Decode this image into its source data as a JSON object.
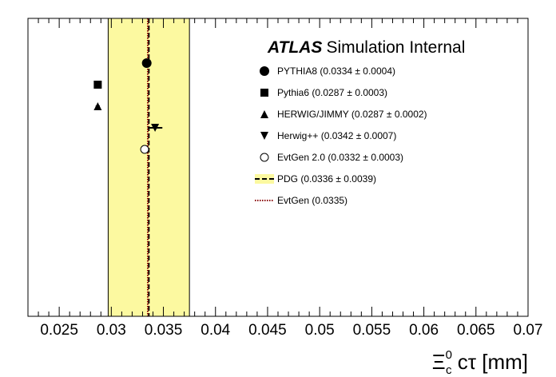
{
  "chart_data": {
    "type": "scatter",
    "title": "",
    "atlas_label": {
      "bold": "ATLAS",
      "rest": "Simulation Internal"
    },
    "xlabel": {
      "symbol": "Ξ",
      "superscript": "0",
      "subscript": "c",
      "rest": " cτ [mm]"
    },
    "ylabel": "",
    "xlim": [
      0.022,
      0.07
    ],
    "x_ticks": [
      0.025,
      0.03,
      0.035,
      0.04,
      0.045,
      0.05,
      0.055,
      0.06,
      0.065,
      0.07
    ],
    "x_tick_labels": [
      "0.025",
      "0.03",
      "0.035",
      "0.04",
      "0.045",
      "0.05",
      "0.055",
      "0.06",
      "0.065",
      "0.07"
    ],
    "legend_position": "top-right",
    "series": [
      {
        "name": "PYTHIA8 (0.0334 ± 0.0004)",
        "marker": "circle-filled",
        "value": 0.0334,
        "error": 0.0004,
        "row": 1
      },
      {
        "name": "Pythia6 (0.0287 ± 0.0003)",
        "marker": "square-filled",
        "value": 0.0287,
        "error": 0.0003,
        "row": 2
      },
      {
        "name": "HERWIG/JIMMY (0.0287 ± 0.0002)",
        "marker": "triangle-up-filled",
        "value": 0.0287,
        "error": 0.0002,
        "row": 3
      },
      {
        "name": "Herwig++ (0.0342 ± 0.0007)",
        "marker": "triangle-down-filled",
        "value": 0.0342,
        "error": 0.0007,
        "row": 4
      },
      {
        "name": "EvtGen 2.0 (0.0332 ± 0.0003)",
        "marker": "circle-open",
        "value": 0.0332,
        "error": 0.0003,
        "row": 5
      }
    ],
    "bands": [
      {
        "name": "PDG (0.0336 ± 0.0039)",
        "center": 0.0336,
        "error": 0.0039,
        "fill": "#fcf9a0",
        "line_color": "#000000",
        "line_style": "dashed"
      }
    ],
    "lines": [
      {
        "name": "EvtGen (0.0335)",
        "value": 0.0335,
        "color": "#8b0000",
        "line_style": "dotted"
      }
    ]
  }
}
